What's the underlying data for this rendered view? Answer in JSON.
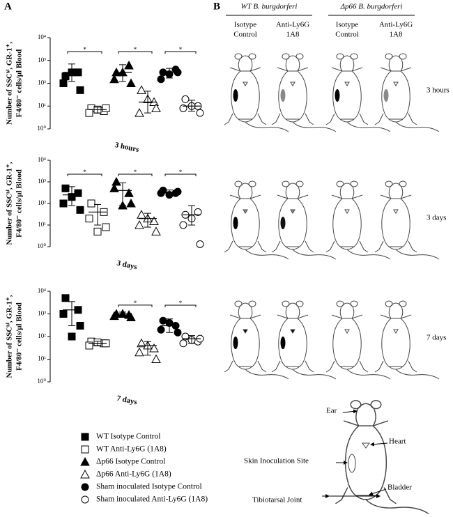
{
  "panel_a_label": "A",
  "panel_b_label": "B",
  "chart_data": [
    {
      "type": "scatter",
      "y_label": [
        "Number of SSCʰⁱ, GR-1⁺,",
        "F4/80⁻ cells/µl Blood"
      ],
      "x_label": "3 hours",
      "log_y": true,
      "ylim": [
        1,
        10000
      ],
      "yticks": [
        {
          "value": 1,
          "label": "10⁰"
        },
        {
          "value": 10,
          "label": "10¹"
        },
        {
          "value": 100,
          "label": "10²"
        },
        {
          "value": 1000,
          "label": "10³"
        },
        {
          "value": 10000,
          "label": "10⁴"
        }
      ],
      "significance": [
        "*",
        "*",
        "*"
      ],
      "series": [
        {
          "marker": "square",
          "filled": true,
          "values": [
            200,
            300,
            100,
            50,
            300
          ],
          "mean": 300,
          "range": [
            120,
            700
          ]
        },
        {
          "marker": "square",
          "filled": false,
          "values": [
            8,
            6,
            5,
            8,
            7
          ],
          "mean": 7,
          "range": [
            5,
            9
          ]
        },
        {
          "marker": "triangle",
          "filled": true,
          "values": [
            300,
            600,
            150,
            100,
            300
          ],
          "mean": 300,
          "range": [
            120,
            650
          ]
        },
        {
          "marker": "triangle",
          "filled": false,
          "values": [
            50,
            15,
            5,
            8,
            20
          ],
          "mean": 15,
          "range": [
            5,
            45
          ]
        },
        {
          "marker": "circle",
          "filled": true,
          "values": [
            300,
            400,
            150,
            300,
            250
          ],
          "mean": 300,
          "range": [
            170,
            450
          ]
        },
        {
          "marker": "circle",
          "filled": false,
          "values": [
            20,
            10,
            8,
            5,
            10
          ],
          "mean": 10,
          "range": [
            6,
            18
          ]
        }
      ]
    },
    {
      "type": "scatter",
      "y_label": [
        "Number of SSCʰⁱ, GR-1⁺,",
        "F4/80⁻ cells/µl Blood"
      ],
      "x_label": "3 days",
      "log_y": true,
      "ylim": [
        1,
        10000
      ],
      "yticks": [
        {
          "value": 1,
          "label": "10⁰"
        },
        {
          "value": 10,
          "label": "10¹"
        },
        {
          "value": 100,
          "label": "10²"
        },
        {
          "value": 1000,
          "label": "10³"
        },
        {
          "value": 10000,
          "label": "10⁴"
        }
      ],
      "significance": [
        "*",
        "*",
        "*"
      ],
      "series": [
        {
          "marker": "square",
          "filled": true,
          "values": [
            500,
            300,
            100,
            50,
            200
          ],
          "mean": 250,
          "range": [
            80,
            600
          ]
        },
        {
          "marker": "square",
          "filled": false,
          "values": [
            100,
            40,
            20,
            8,
            5
          ],
          "mean": 40,
          "range": [
            10,
            90
          ]
        },
        {
          "marker": "triangle",
          "filled": true,
          "values": [
            1000,
            300,
            500,
            100,
            80
          ],
          "mean": 400,
          "range": [
            80,
            900
          ]
        },
        {
          "marker": "triangle",
          "filled": false,
          "values": [
            30,
            15,
            10,
            5,
            20
          ],
          "mean": 20,
          "range": [
            8,
            35
          ]
        },
        {
          "marker": "circle",
          "filled": true,
          "values": [
            400,
            300,
            300,
            350,
            250
          ],
          "mean": 320,
          "range": [
            250,
            420
          ]
        },
        {
          "marker": "circle",
          "filled": false,
          "values": [
            30,
            40,
            10,
            1.3,
            20
          ],
          "mean": 30,
          "range": [
            10,
            80
          ]
        }
      ]
    },
    {
      "type": "scatter",
      "y_label": [
        "Number of SSCʰⁱ, GR-1⁺,",
        "F4/80⁻ cells/µl Blood"
      ],
      "x_label": "7 days",
      "log_y": true,
      "ylim": [
        1,
        10000
      ],
      "yticks": [
        {
          "value": 1,
          "label": "10⁰"
        },
        {
          "value": 10,
          "label": "10¹"
        },
        {
          "value": 100,
          "label": "10²"
        },
        {
          "value": 1000,
          "label": "10³"
        },
        {
          "value": 10000,
          "label": "10⁴"
        }
      ],
      "significance": [
        null,
        "*",
        "*"
      ],
      "series": [
        {
          "marker": "square",
          "filled": true,
          "values": [
            5000,
            1500,
            1000,
            300,
            100
          ],
          "mean": 1500,
          "range": [
            300,
            3500
          ]
        },
        {
          "marker": "square",
          "filled": false,
          "values": [
            60,
            50,
            40,
            50,
            55
          ],
          "mean": 50,
          "range": [
            40,
            62
          ]
        },
        {
          "marker": "triangle",
          "filled": true,
          "values": [
            1000,
            900,
            800,
            700,
            1000
          ],
          "mean": 1000,
          "range": [
            750,
            1200
          ]
        },
        {
          "marker": "triangle",
          "filled": false,
          "values": [
            50,
            30,
            20,
            10,
            40
          ],
          "mean": 40,
          "range": [
            15,
            60
          ]
        },
        {
          "marker": "circle",
          "filled": true,
          "values": [
            500,
            300,
            200,
            150,
            400
          ],
          "mean": 300,
          "range": [
            150,
            600
          ]
        },
        {
          "marker": "circle",
          "filled": false,
          "values": [
            100,
            60,
            50,
            80,
            70
          ],
          "mean": 80,
          "range": [
            50,
            110
          ]
        }
      ]
    }
  ],
  "legend": [
    "WT Isotype Control",
    "WT Anti-Ly6G (1A8)",
    "Δp66 Isotype Control",
    "Δp66 Anti-Ly6G (1A8)",
    "Sham inoculated Isotype Control",
    "Sham inoculated Anti-Ly6G (1A8)"
  ],
  "panel_b": {
    "strains": [
      "WT B. burgdorferi",
      "Δp66 B. burgdorferi"
    ],
    "treatments": [
      [
        "Isotype",
        "Control"
      ],
      [
        "Anti-Ly6G",
        "1A8"
      ]
    ],
    "timepoints": [
      "3 hours",
      "3 days",
      "7 days"
    ],
    "anatomy": {
      "ear": "Ear",
      "heart": "Heart",
      "skin": "Skin Inoculation Site",
      "bladder": "Bladder",
      "joint": "Tibiotarsal  Joint"
    }
  }
}
